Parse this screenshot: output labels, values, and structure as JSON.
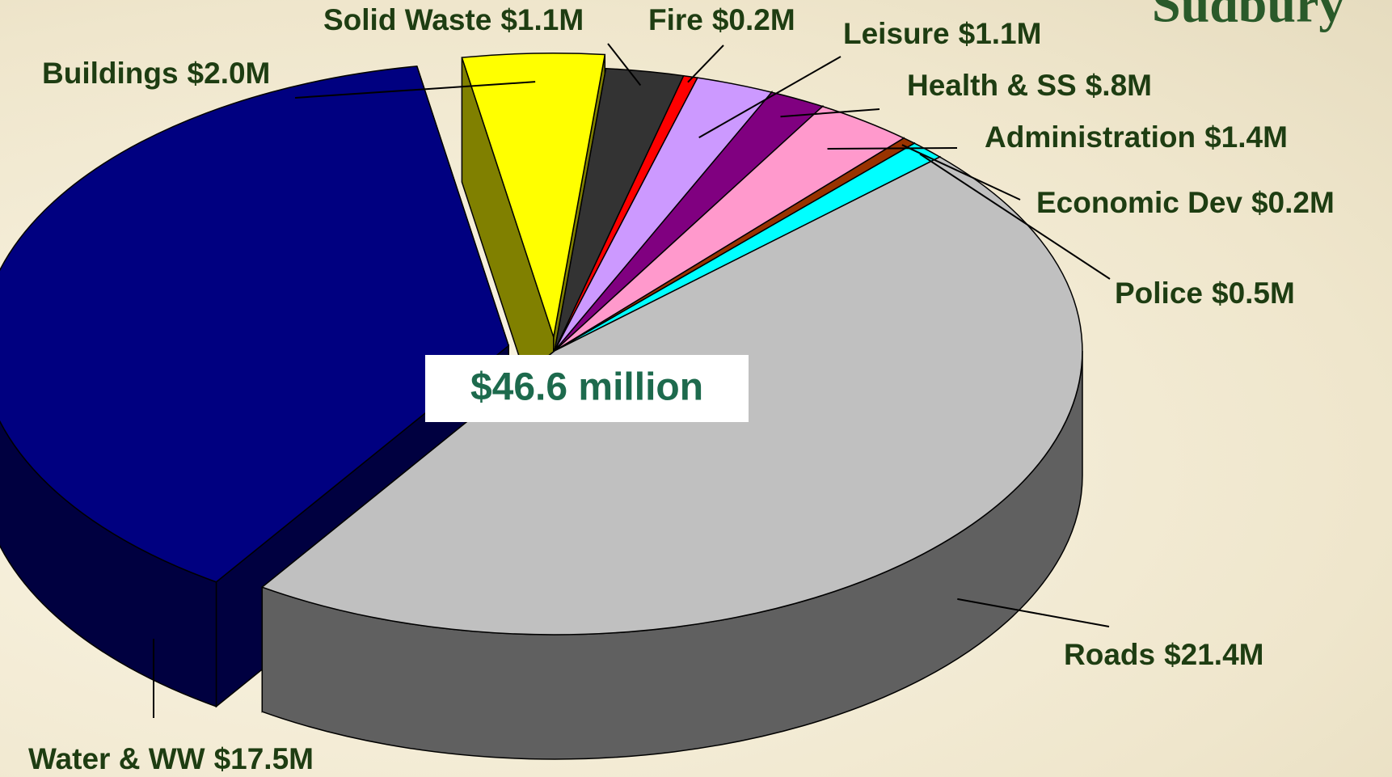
{
  "chart_data": {
    "type": "pie3d",
    "logo": "Sudbury",
    "annotation": "$46.6 million",
    "categories": [
      "Buildings",
      "Solid Waste",
      "Fire",
      "Leisure",
      "Health & SS",
      "Administration",
      "Economic Dev",
      "Police",
      "Roads",
      "Water & WW"
    ],
    "values": [
      2.0,
      1.1,
      0.2,
      1.1,
      0.8,
      1.4,
      0.2,
      0.5,
      21.4,
      17.5
    ],
    "value_labels": [
      "$2.0M",
      "$1.1M",
      "$0.2M",
      "$1.1M",
      "$.8M",
      "$1.4M",
      "$0.2M",
      "$0.5M",
      "$21.4M",
      "$17.5M"
    ],
    "colors": [
      "#ffff00",
      "#333333",
      "#ff0000",
      "#cc99ff",
      "#800080",
      "#ff99cc",
      "#993300",
      "#00ffff",
      "#c0c0c0",
      "#000080"
    ]
  }
}
